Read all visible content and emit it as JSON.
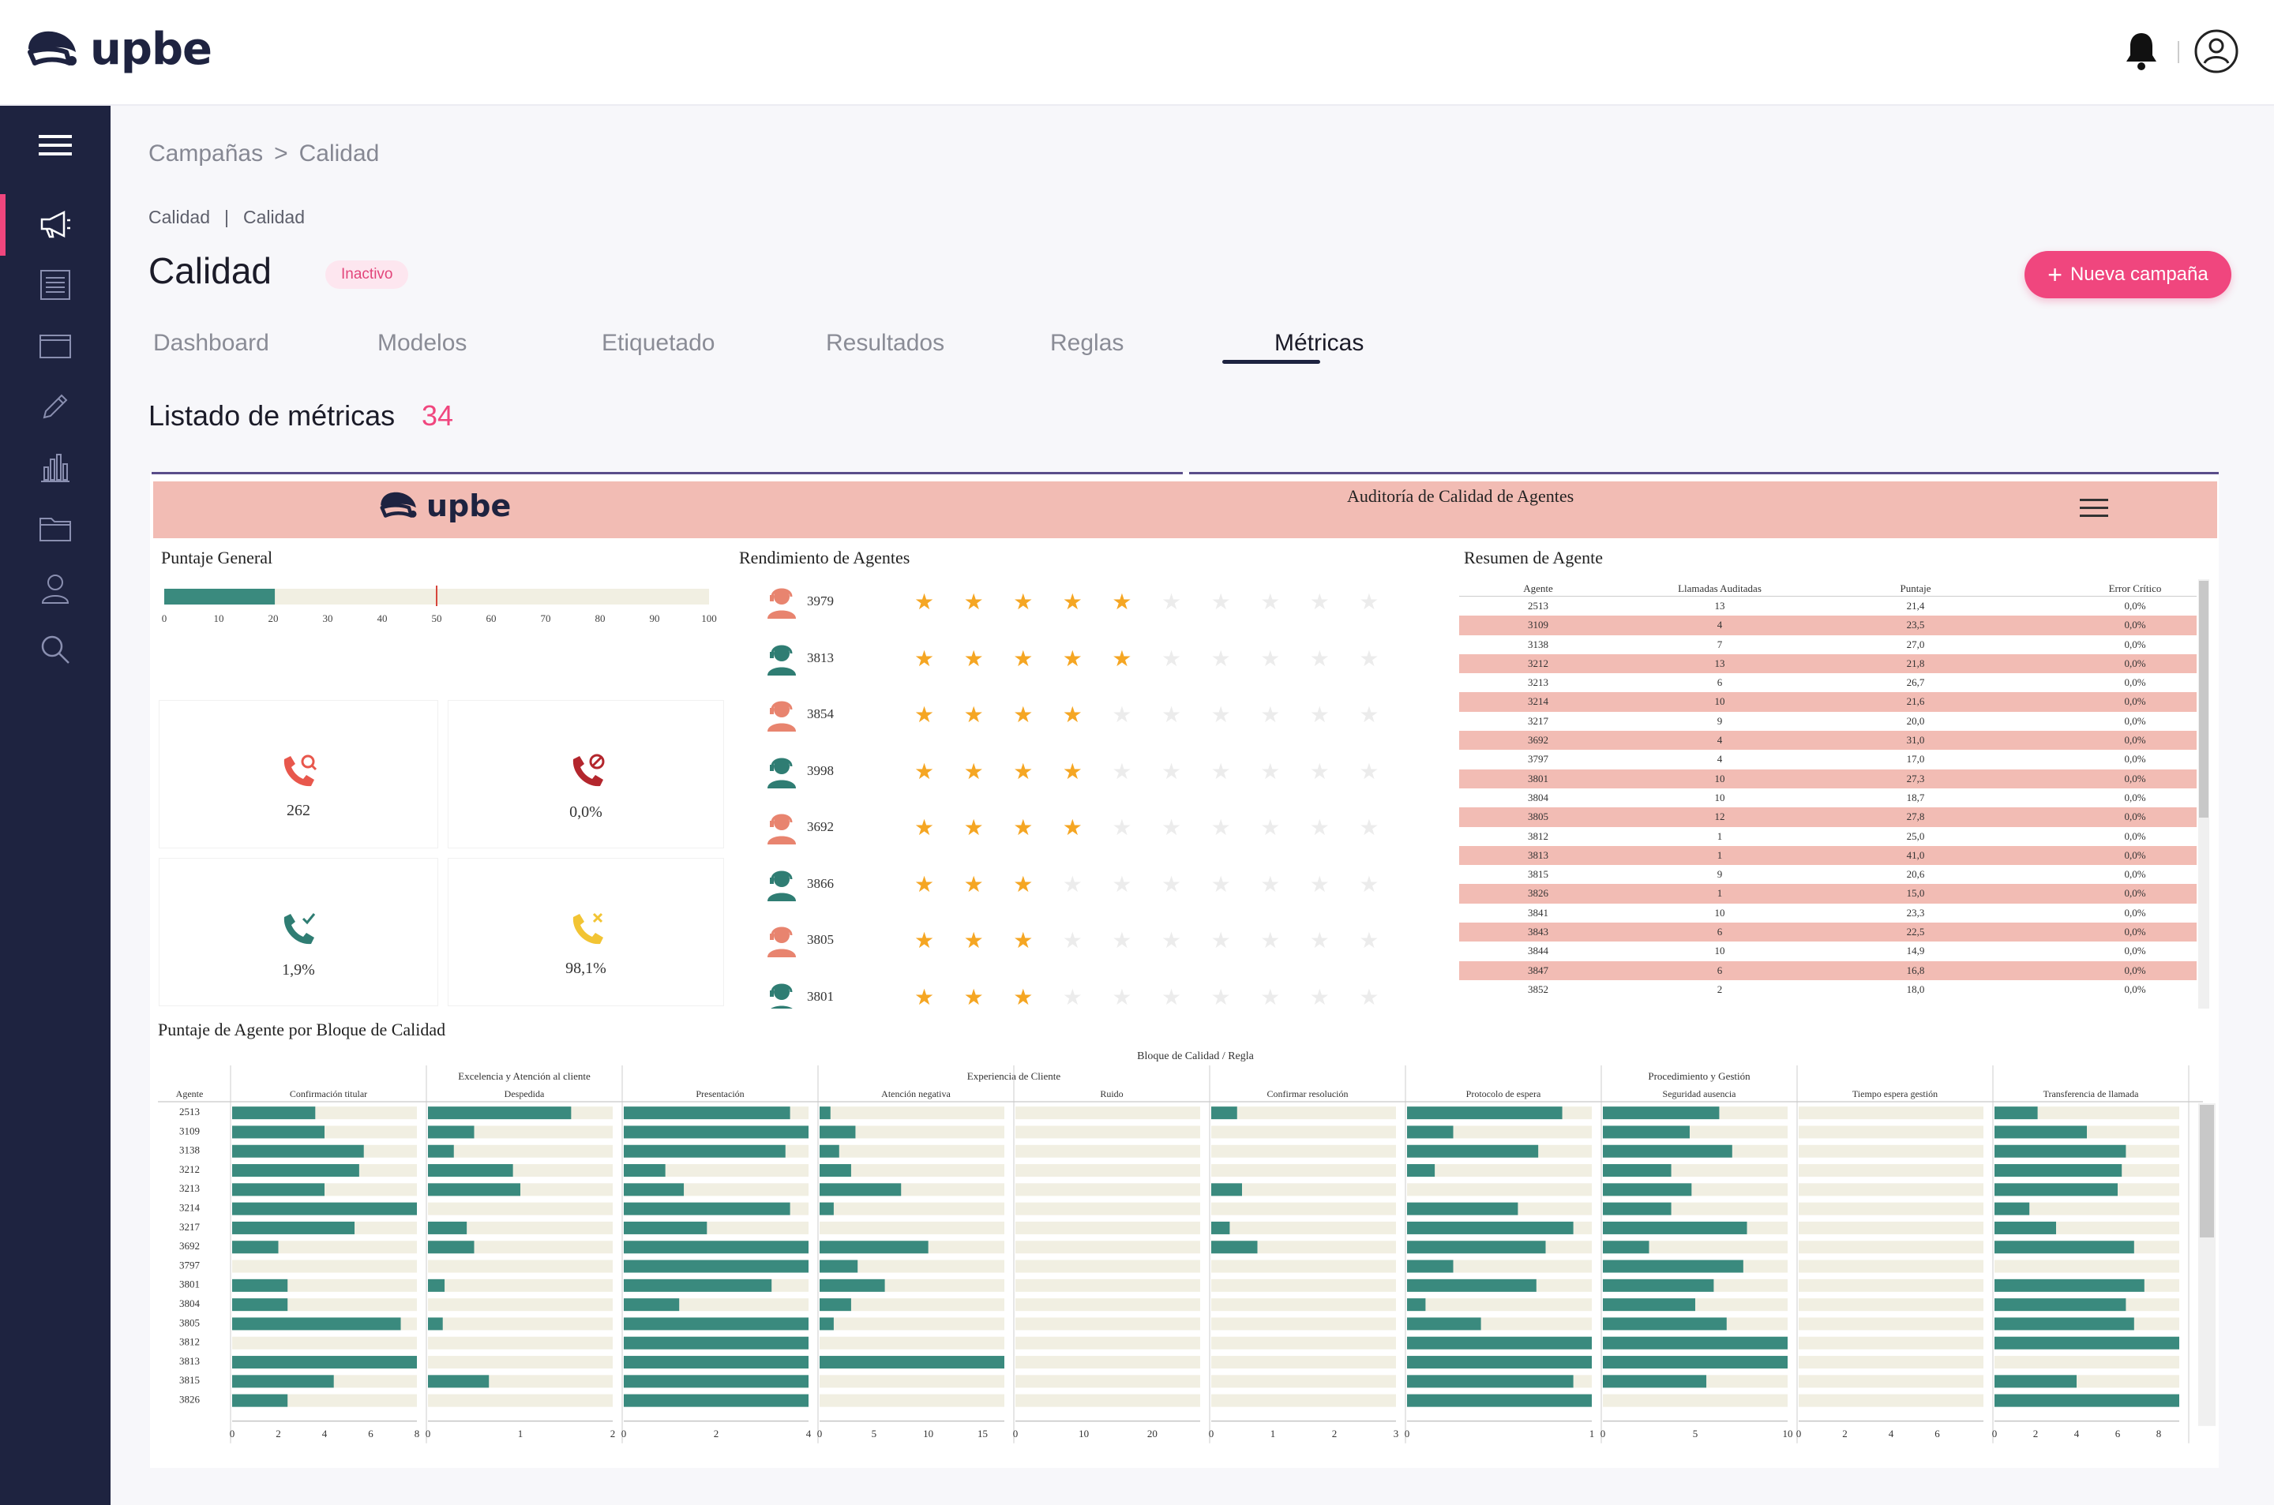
{
  "app": {
    "brand": "upbe"
  },
  "breadcrumb": {
    "items": [
      "Campañas",
      "Calidad"
    ],
    "separator": ">"
  },
  "subcrumb": {
    "items": [
      "Calidad",
      "Calidad"
    ],
    "separator": "|"
  },
  "page": {
    "title": "Calidad",
    "status_badge": "Inactivo"
  },
  "actions": {
    "new_campaign": "Nueva campaña"
  },
  "tabs": [
    {
      "label": "Dashboard",
      "active": false
    },
    {
      "label": "Modelos",
      "active": false
    },
    {
      "label": "Etiquetado",
      "active": false
    },
    {
      "label": "Resultados",
      "active": false
    },
    {
      "label": "Reglas",
      "active": false
    },
    {
      "label": "Métricas",
      "active": true
    }
  ],
  "list": {
    "title": "Listado de métricas",
    "count": "34"
  },
  "sidebar": {
    "items": [
      {
        "icon": "menu-icon"
      },
      {
        "icon": "megaphone-icon",
        "active": true
      },
      {
        "icon": "list-icon"
      },
      {
        "icon": "window-icon"
      },
      {
        "icon": "pencil-icon"
      },
      {
        "icon": "bar-chart-icon"
      },
      {
        "icon": "folder-icon"
      },
      {
        "icon": "user-icon"
      },
      {
        "icon": "search-icon"
      }
    ]
  },
  "colors": {
    "accent": "#f0467e",
    "navy": "#1e2340",
    "teal": "#3a8a7e",
    "salmon": "#f2bcb4",
    "star": "#f5a623",
    "beige": "#f1efe2"
  },
  "dashboard": {
    "brand": "upbe",
    "title": "Auditoría de Calidad de Agentes",
    "puntaje_general": {
      "title": "Puntaje General",
      "ticks": [
        "0",
        "10",
        "20",
        "30",
        "40",
        "50",
        "60",
        "70",
        "80",
        "90",
        "100"
      ],
      "value": 20.3,
      "reference": 50
    },
    "kpis": [
      {
        "value": "262",
        "icon": "phone-search-icon",
        "color": "#e8574c"
      },
      {
        "value": "0,0%",
        "icon": "phone-blocked-icon",
        "color": "#b3262d"
      },
      {
        "value": "1,9%",
        "icon": "phone-check-icon",
        "color": "#2f7d73"
      },
      {
        "value": "98,1%",
        "icon": "phone-x-icon",
        "color": "#f2c434"
      }
    ],
    "rendimiento": {
      "title": "Rendimiento de Agentes",
      "agents": [
        {
          "id": "3979",
          "stars": 5,
          "color": "salmon"
        },
        {
          "id": "3813",
          "stars": 5,
          "color": "teal"
        },
        {
          "id": "3854",
          "stars": 4,
          "color": "salmon"
        },
        {
          "id": "3998",
          "stars": 4,
          "color": "teal"
        },
        {
          "id": "3692",
          "stars": 4,
          "color": "salmon"
        },
        {
          "id": "3866",
          "stars": 3,
          "color": "teal"
        },
        {
          "id": "3805",
          "stars": 3,
          "color": "salmon"
        },
        {
          "id": "3801",
          "stars": 3,
          "color": "teal"
        }
      ]
    },
    "resumen": {
      "title": "Resumen de Agente",
      "columns": [
        "Agente",
        "Llamadas Auditadas",
        "Puntaje",
        "Error Crítico"
      ],
      "rows": [
        [
          "2513",
          "13",
          "21,4",
          "0,0%"
        ],
        [
          "3109",
          "4",
          "23,5",
          "0,0%"
        ],
        [
          "3138",
          "7",
          "27,0",
          "0,0%"
        ],
        [
          "3212",
          "13",
          "21,8",
          "0,0%"
        ],
        [
          "3213",
          "6",
          "26,7",
          "0,0%"
        ],
        [
          "3214",
          "10",
          "21,6",
          "0,0%"
        ],
        [
          "3217",
          "9",
          "20,0",
          "0,0%"
        ],
        [
          "3692",
          "4",
          "31,0",
          "0,0%"
        ],
        [
          "3797",
          "4",
          "17,0",
          "0,0%"
        ],
        [
          "3801",
          "10",
          "27,3",
          "0,0%"
        ],
        [
          "3804",
          "10",
          "18,7",
          "0,0%"
        ],
        [
          "3805",
          "12",
          "27,8",
          "0,0%"
        ],
        [
          "3812",
          "1",
          "25,0",
          "0,0%"
        ],
        [
          "3813",
          "1",
          "41,0",
          "0,0%"
        ],
        [
          "3815",
          "9",
          "20,6",
          "0,0%"
        ],
        [
          "3826",
          "1",
          "15,0",
          "0,0%"
        ],
        [
          "3841",
          "10",
          "23,3",
          "0,0%"
        ],
        [
          "3843",
          "6",
          "22,5",
          "0,0%"
        ],
        [
          "3844",
          "10",
          "14,9",
          "0,0%"
        ],
        [
          "3847",
          "6",
          "16,8",
          "0,0%"
        ],
        [
          "3852",
          "2",
          "18,0",
          "0,0%"
        ]
      ]
    },
    "bloque": {
      "title": "Puntaje de Agente por Bloque de Calidad",
      "header": "Bloque de Calidad  /  Regla",
      "agent_label": "Agente",
      "groups": [
        {
          "label": "Excelencia y Atención al cliente",
          "from": 0,
          "to": 3
        },
        {
          "label": "Experiencia de Cliente",
          "from": 3,
          "to": 5
        },
        {
          "label": "Procedimiento y Gestión",
          "from": 6,
          "to": 9
        }
      ]
    }
  },
  "chart_data": {
    "type": "bar",
    "title": "Puntaje de Agente por Bloque de Calidad",
    "categories": [
      "2513",
      "3109",
      "3138",
      "3212",
      "3213",
      "3214",
      "3217",
      "3692",
      "3797",
      "3801",
      "3804",
      "3805",
      "3812",
      "3813",
      "3815",
      "3826"
    ],
    "series": [
      {
        "name": "Confirmación titular",
        "max": 8,
        "ticks": [
          "0",
          "2",
          "4",
          "6",
          "8"
        ],
        "values": [
          3.6,
          4.0,
          5.7,
          5.5,
          4.0,
          8.0,
          5.3,
          2.0,
          0,
          2.4,
          2.4,
          7.3,
          0,
          8.0,
          4.4,
          2.4
        ]
      },
      {
        "name": "Despedida",
        "max": 2,
        "ticks": [
          "0",
          "1",
          "2"
        ],
        "values": [
          1.55,
          0.5,
          0.28,
          0.92,
          1.0,
          0,
          0.42,
          0.5,
          0,
          0.18,
          0,
          0.16,
          0,
          0,
          0.66,
          0
        ]
      },
      {
        "name": "Presentación",
        "max": 4,
        "ticks": [
          "0",
          "2",
          "4"
        ],
        "values": [
          3.6,
          4.0,
          3.5,
          0.9,
          1.3,
          3.6,
          1.8,
          4.0,
          4.0,
          3.2,
          1.2,
          4.0,
          4.0,
          4.0,
          4.0,
          4.0
        ]
      },
      {
        "name": "Atención negativa",
        "max": 17,
        "ticks": [
          "0",
          "5",
          "10",
          "15"
        ],
        "values": [
          1.0,
          3.3,
          1.8,
          2.9,
          7.5,
          1.3,
          0,
          10.0,
          3.5,
          6.0,
          2.9,
          1.3,
          0,
          17.0,
          0,
          0
        ]
      },
      {
        "name": "Ruido",
        "max": 27,
        "ticks": [
          "0",
          "10",
          "20"
        ],
        "values": [
          0,
          0,
          0,
          0,
          0,
          0,
          0,
          0,
          0,
          0,
          0,
          0,
          0,
          0,
          0,
          0
        ]
      },
      {
        "name": "Confirmar resolución",
        "max": 3,
        "ticks": [
          "0",
          "1",
          "2",
          "3"
        ],
        "values": [
          0.42,
          0,
          0,
          0,
          0.5,
          0,
          0.3,
          0.75,
          0,
          0,
          0,
          0,
          0,
          0,
          0,
          0
        ]
      },
      {
        "name": "Protocolo de espera",
        "max": 1,
        "ticks": [
          "0",
          "1"
        ],
        "values": [
          0.84,
          0.25,
          0.71,
          0.15,
          0,
          0.6,
          0.9,
          0.75,
          0.25,
          0.7,
          0.1,
          0.4,
          1.0,
          1.0,
          0.9,
          1.0
        ]
      },
      {
        "name": "Seguridad ausencia",
        "max": 10,
        "ticks": [
          "0",
          "5",
          "10"
        ],
        "values": [
          6.3,
          4.7,
          7.0,
          3.7,
          4.8,
          3.7,
          7.8,
          2.5,
          7.6,
          6.0,
          5.0,
          6.7,
          10.0,
          10.0,
          5.6,
          0
        ]
      },
      {
        "name": "Tiempo espera gestión",
        "max": 8,
        "ticks": [
          "0",
          "2",
          "4",
          "6"
        ],
        "values": [
          0,
          0,
          0,
          0,
          0,
          0,
          0,
          0,
          0,
          0,
          0,
          0,
          0,
          0,
          0,
          0
        ]
      },
      {
        "name": "Transferencia de llamada",
        "max": 9,
        "ticks": [
          "0",
          "2",
          "4",
          "6",
          "8"
        ],
        "values": [
          2.1,
          4.5,
          6.4,
          6.2,
          6.0,
          1.7,
          3.0,
          6.8,
          0,
          7.3,
          6.4,
          6.8,
          9.0,
          0,
          4.0,
          9.0
        ]
      }
    ],
    "ylabel": "Agente"
  }
}
